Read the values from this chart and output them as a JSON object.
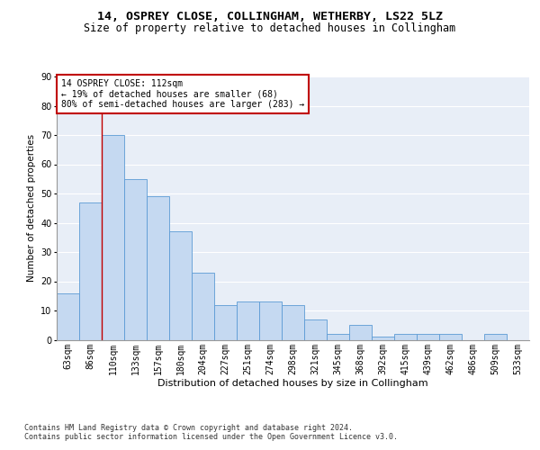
{
  "title1": "14, OSPREY CLOSE, COLLINGHAM, WETHERBY, LS22 5LZ",
  "title2": "Size of property relative to detached houses in Collingham",
  "xlabel": "Distribution of detached houses by size in Collingham",
  "ylabel": "Number of detached properties",
  "categories": [
    "63sqm",
    "86sqm",
    "110sqm",
    "133sqm",
    "157sqm",
    "180sqm",
    "204sqm",
    "227sqm",
    "251sqm",
    "274sqm",
    "298sqm",
    "321sqm",
    "345sqm",
    "368sqm",
    "392sqm",
    "415sqm",
    "439sqm",
    "462sqm",
    "486sqm",
    "509sqm",
    "533sqm"
  ],
  "values": [
    16,
    47,
    70,
    55,
    49,
    37,
    23,
    12,
    13,
    13,
    12,
    7,
    2,
    5,
    1,
    2,
    2,
    2,
    0,
    2,
    0
  ],
  "bar_color": "#c5d9f1",
  "bar_edge_color": "#5b9bd5",
  "vline_bin_index": 2,
  "vline_color": "#c00000",
  "annotation_text": "14 OSPREY CLOSE: 112sqm\n← 19% of detached houses are smaller (68)\n80% of semi-detached houses are larger (283) →",
  "annotation_box_color": "white",
  "annotation_box_edge_color": "#c00000",
  "ylim": [
    0,
    90
  ],
  "yticks": [
    0,
    10,
    20,
    30,
    40,
    50,
    60,
    70,
    80,
    90
  ],
  "bg_color": "#e8eef7",
  "footer1": "Contains HM Land Registry data © Crown copyright and database right 2024.",
  "footer2": "Contains public sector information licensed under the Open Government Licence v3.0.",
  "title1_fontsize": 9.5,
  "title2_fontsize": 8.5,
  "xlabel_fontsize": 8,
  "ylabel_fontsize": 7.5,
  "tick_fontsize": 7,
  "footer_fontsize": 6,
  "annot_fontsize": 7
}
